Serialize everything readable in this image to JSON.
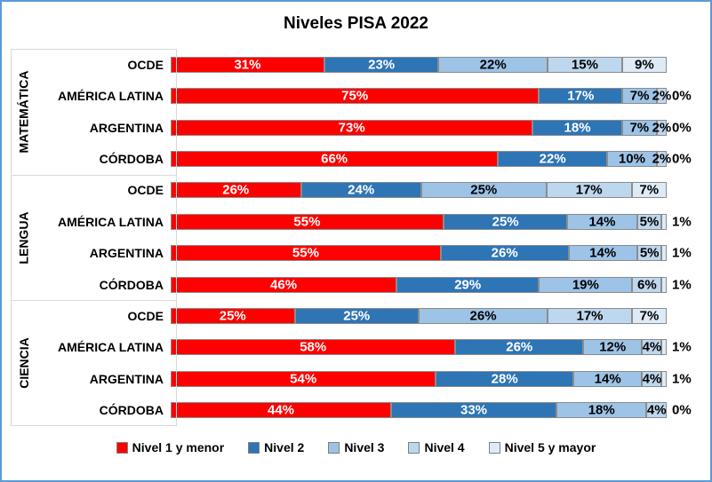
{
  "chart_data": {
    "type": "bar",
    "orientation": "horizontal",
    "stacked_100": true,
    "title": "Niveles PISA 2022",
    "xlim": [
      0,
      100
    ],
    "grid": false,
    "legend_position": "bottom",
    "legend": [
      "Nivel 1 y menor",
      "Nivel 2",
      "Nivel 3",
      "Nivel 4",
      "Nivel 5 y mayor"
    ],
    "series_colors": [
      "#FF0000",
      "#2E75B6",
      "#9DC3E6",
      "#BDD7EE",
      "#DEEBF7"
    ],
    "series_label_colors": [
      "#FFFFFF",
      "#FFFFFF",
      "#000000",
      "#000000",
      "#000000"
    ],
    "accent_border_color": "#5B9BD5",
    "segment_border_color": "#8C8C8C",
    "axis_line_color": "#D9D9D9",
    "groups": [
      {
        "name": "MATEMÁTICA",
        "rows": [
          {
            "label": "OCDE",
            "values": [
              31,
              23,
              22,
              15,
              9
            ]
          },
          {
            "label": "AMÉRICA LATINA",
            "values": [
              75,
              17,
              7,
              2,
              0
            ]
          },
          {
            "label": "ARGENTINA",
            "values": [
              73,
              18,
              7,
              2,
              0
            ]
          },
          {
            "label": "CÓRDOBA",
            "values": [
              66,
              22,
              10,
              2,
              0
            ]
          }
        ]
      },
      {
        "name": "LENGUA",
        "rows": [
          {
            "label": "OCDE",
            "values": [
              26,
              24,
              25,
              17,
              7
            ]
          },
          {
            "label": "AMÉRICA LATINA",
            "values": [
              55,
              25,
              14,
              5,
              1
            ]
          },
          {
            "label": "ARGENTINA",
            "values": [
              55,
              26,
              14,
              5,
              1
            ]
          },
          {
            "label": "CÓRDOBA",
            "values": [
              46,
              29,
              19,
              6,
              1
            ]
          }
        ]
      },
      {
        "name": "CIENCIA",
        "rows": [
          {
            "label": "OCDE",
            "values": [
              25,
              25,
              26,
              17,
              7
            ]
          },
          {
            "label": "AMÉRICA LATINA",
            "values": [
              58,
              26,
              12,
              4,
              1
            ]
          },
          {
            "label": "ARGENTINA",
            "values": [
              54,
              28,
              14,
              4,
              1
            ]
          },
          {
            "label": "CÓRDOBA",
            "values": [
              44,
              33,
              18,
              4,
              0
            ]
          }
        ]
      }
    ]
  }
}
